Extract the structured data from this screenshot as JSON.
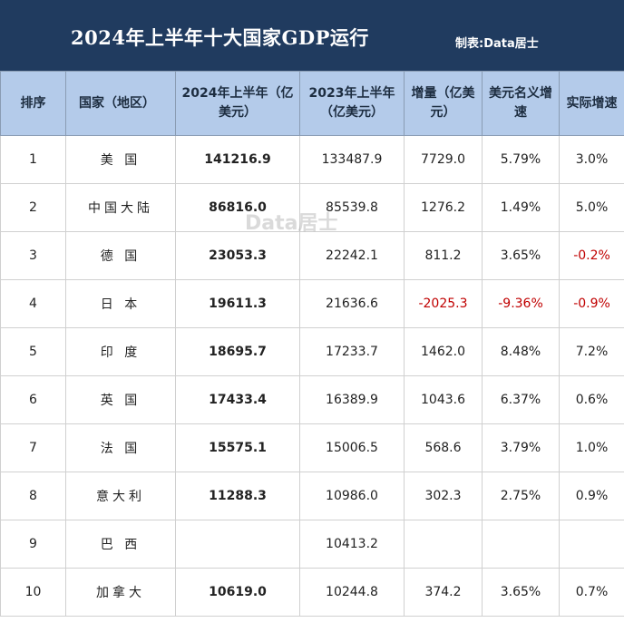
{
  "title": "2024年上半年十大国家GDP运行",
  "credit": "制表:Data居士",
  "watermark": "Data居士",
  "headers": {
    "rank": "排序",
    "country": "国家（地区）",
    "gdp_2024": "2024年上半年（亿美元）",
    "gdp_2023": "2023年上半年（亿美元）",
    "increase": "增量（亿美元）",
    "nominal_growth": "美元名义增速",
    "real_growth": "实际增速"
  },
  "rows": [
    {
      "rank": "1",
      "country": "美 国",
      "gdp_2024": "141216.9",
      "gdp_2023": "133487.9",
      "increase": "7729.0",
      "nominal_growth": "5.79%",
      "real_growth": "3.0%"
    },
    {
      "rank": "2",
      "country": "中国大陆",
      "gdp_2024": "86816.0",
      "gdp_2023": "85539.8",
      "increase": "1276.2",
      "nominal_growth": "1.49%",
      "real_growth": "5.0%"
    },
    {
      "rank": "3",
      "country": "德 国",
      "gdp_2024": "23053.3",
      "gdp_2023": "22242.1",
      "increase": "811.2",
      "nominal_growth": "3.65%",
      "real_growth": "-0.2%"
    },
    {
      "rank": "4",
      "country": "日 本",
      "gdp_2024": "19611.3",
      "gdp_2023": "21636.6",
      "increase": "-2025.3",
      "nominal_growth": "-9.36%",
      "real_growth": "-0.9%"
    },
    {
      "rank": "5",
      "country": "印 度",
      "gdp_2024": "18695.7",
      "gdp_2023": "17233.7",
      "increase": "1462.0",
      "nominal_growth": "8.48%",
      "real_growth": "7.2%"
    },
    {
      "rank": "6",
      "country": "英 国",
      "gdp_2024": "17433.4",
      "gdp_2023": "16389.9",
      "increase": "1043.6",
      "nominal_growth": "6.37%",
      "real_growth": "0.6%"
    },
    {
      "rank": "7",
      "country": "法 国",
      "gdp_2024": "15575.1",
      "gdp_2023": "15006.5",
      "increase": "568.6",
      "nominal_growth": "3.79%",
      "real_growth": "1.0%"
    },
    {
      "rank": "8",
      "country": "意大利",
      "gdp_2024": "11288.3",
      "gdp_2023": "10986.0",
      "increase": "302.3",
      "nominal_growth": "2.75%",
      "real_growth": "0.9%"
    },
    {
      "rank": "9",
      "country": "巴 西",
      "gdp_2024": "",
      "gdp_2023": "10413.2",
      "increase": "",
      "nominal_growth": "",
      "real_growth": ""
    },
    {
      "rank": "10",
      "country": "加拿大",
      "gdp_2024": "10619.0",
      "gdp_2023": "10244.8",
      "increase": "374.2",
      "nominal_growth": "3.65%",
      "real_growth": "0.7%"
    }
  ],
  "colors": {
    "title_bg": "#203b5f",
    "header_bg": "#b4cbea",
    "negative": "#c00000"
  }
}
